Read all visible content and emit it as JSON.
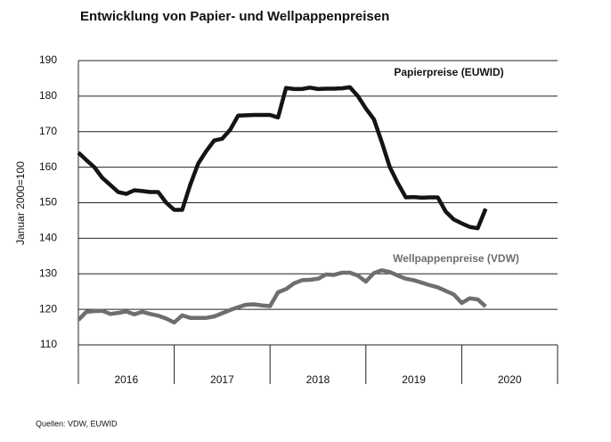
{
  "chart_data": {
    "type": "line",
    "title": "Entwicklung von Papier- und Wellpappenpreisen",
    "y_label": "Januar 2000=100",
    "source": "Quellen: VDW, EUWID",
    "categories": [
      null,
      null,
      null,
      null,
      null,
      null,
      "2016",
      null,
      null,
      null,
      null,
      null,
      null,
      null,
      null,
      null,
      null,
      null,
      "2017",
      null,
      null,
      null,
      null,
      null,
      null,
      null,
      null,
      null,
      null,
      null,
      "2018",
      null,
      null,
      null,
      null,
      null,
      null,
      null,
      null,
      null,
      null,
      null,
      "2019",
      null,
      null,
      null,
      null,
      null,
      null,
      null,
      null,
      null,
      null,
      null,
      "2020",
      null,
      null,
      null,
      null,
      null
    ],
    "series": [
      {
        "name": "Papierpreise (EUWID)",
        "color": "#141414",
        "values": [
          164.1,
          162,
          160,
          157,
          155,
          153,
          152.5,
          153.5,
          153.3,
          153,
          153,
          150,
          148,
          148,
          155,
          161,
          164.5,
          167.5,
          168,
          170.5,
          174.5,
          174.6,
          174.7,
          174.7,
          174.7,
          174,
          182.3,
          182,
          182,
          182.4,
          182,
          182.1,
          182.1,
          182.2,
          182.5,
          180,
          176.5,
          173.5,
          167,
          160,
          155.5,
          151.5,
          151.6,
          151.4,
          151.5,
          151.5,
          147.5,
          145.3,
          144.2,
          143.2,
          142.8,
          148.3,
          null,
          null,
          null,
          null,
          null,
          null,
          null,
          null
        ]
      },
      {
        "name": "Wellpappenpreise (VDW)",
        "color": "#6e6e6e",
        "values": [
          117,
          119.3,
          119.5,
          119.6,
          118.7,
          119,
          119.4,
          118.6,
          119.3,
          118.7,
          118.2,
          117.4,
          116.3,
          118.3,
          117.6,
          117.6,
          117.6,
          118,
          118.9,
          119.8,
          120.6,
          121.3,
          121.4,
          121.1,
          120.9,
          124.8,
          125.7,
          127.3,
          128.2,
          128.3,
          128.6,
          129.8,
          129.7,
          130.3,
          130.3,
          129.5,
          127.8,
          130.2,
          131,
          130.5,
          129.5,
          128.6,
          128.2,
          127.5,
          126.8,
          126.2,
          125.2,
          124.2,
          121.8,
          123.1,
          122.8,
          120.8,
          null,
          null,
          null,
          null,
          null,
          null,
          null,
          null
        ]
      }
    ],
    "ylim": [
      110,
      190
    ],
    "yticks": [
      110,
      120,
      130,
      140,
      150,
      160,
      170,
      180,
      190
    ],
    "grid": true
  }
}
